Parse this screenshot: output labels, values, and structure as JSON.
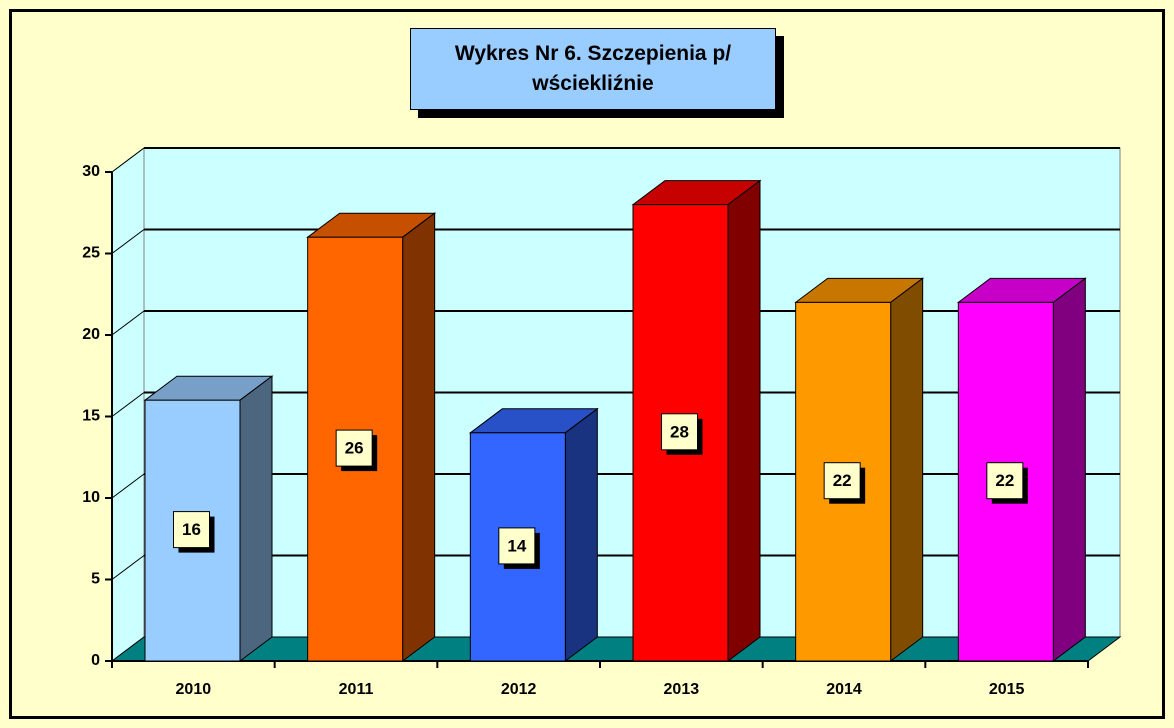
{
  "chart_data": {
    "type": "bar3d",
    "title": "Wykres Nr 6. Szczepienia p/ wściekliźnie",
    "categories": [
      "2010",
      "2011",
      "2012",
      "2013",
      "2014",
      "2015"
    ],
    "values": [
      16,
      26,
      14,
      28,
      22,
      22
    ],
    "colors": [
      "#99ccff",
      "#ff6600",
      "#3366ff",
      "#ff0000",
      "#ff9900",
      "#ff00ff"
    ],
    "ylim": [
      0,
      30
    ],
    "yticks": [
      0,
      5,
      10,
      15,
      20,
      25,
      30
    ],
    "grid": true
  }
}
